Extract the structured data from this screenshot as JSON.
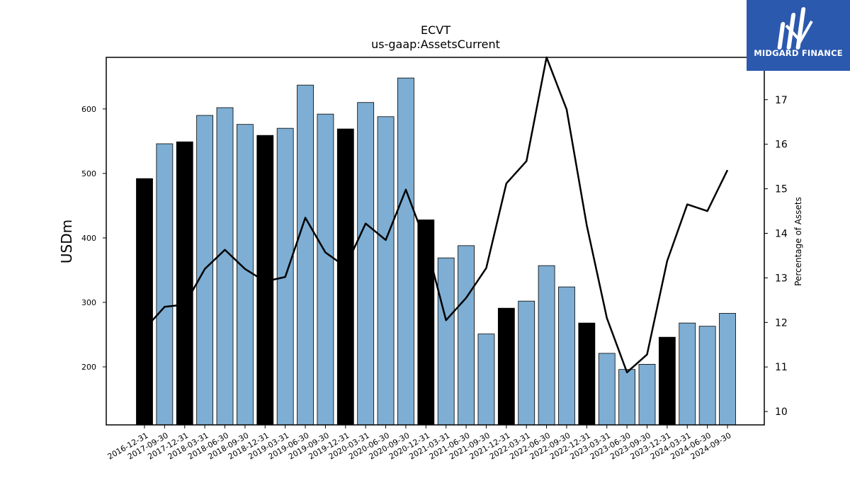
{
  "logo": {
    "name": "MIDGARD FINANCE",
    "icon": "midgard-logo-icon",
    "bg_color": "#2b59ad"
  },
  "chart_data": {
    "type": "bar",
    "title": "ECVT",
    "subtitle": "us-gaap:AssetsCurrent",
    "ylabel": "USDm",
    "y2label": "Percentage of Assets",
    "ylim": [
      110,
      680
    ],
    "y2lim": [
      9.7,
      17.95
    ],
    "yticks": [
      200,
      300,
      400,
      500,
      600
    ],
    "y2ticks": [
      10,
      11,
      12,
      13,
      14,
      15,
      16,
      17
    ],
    "categories": [
      "2016-12-31",
      "2017-09-30",
      "2017-12-31",
      "2018-03-31",
      "2018-06-30",
      "2018-09-30",
      "2018-12-31",
      "2019-03-31",
      "2019-06-30",
      "2019-09-30",
      "2019-12-31",
      "2020-03-31",
      "2020-06-30",
      "2020-09-30",
      "2020-12-31",
      "2021-03-31",
      "2021-06-30",
      "2021-09-30",
      "2021-12-31",
      "2022-03-31",
      "2022-06-30",
      "2022-09-30",
      "2022-12-31",
      "2023-03-31",
      "2023-06-30",
      "2023-09-30",
      "2023-12-31",
      "2024-03-31",
      "2024-06-30",
      "2024-09-30"
    ],
    "series": [
      {
        "type": "bar",
        "values": [
          492,
          546,
          549,
          590,
          602,
          576,
          559,
          570,
          637,
          592,
          569,
          610,
          588,
          648,
          428,
          369,
          388,
          251,
          291,
          302,
          357,
          324,
          268,
          221,
          196,
          204,
          246,
          268,
          263,
          283
        ],
        "highlight": [
          true,
          false,
          true,
          false,
          false,
          false,
          true,
          false,
          false,
          false,
          true,
          false,
          false,
          false,
          true,
          false,
          false,
          false,
          true,
          false,
          false,
          false,
          true,
          false,
          false,
          false,
          true,
          false,
          false,
          false
        ],
        "color": "#7eaed3",
        "highlight_color": "#000000"
      },
      {
        "type": "line",
        "axis": "right",
        "values": [
          11.85,
          12.35,
          12.4,
          13.2,
          13.63,
          13.2,
          12.92,
          13.02,
          14.35,
          13.57,
          13.25,
          14.22,
          13.85,
          14.98,
          13.78,
          12.05,
          12.55,
          13.22,
          15.12,
          15.62,
          17.95,
          16.78,
          14.18,
          12.1,
          10.88,
          11.28,
          13.38,
          14.65,
          14.5,
          15.42
        ],
        "color": "#000000"
      }
    ]
  }
}
